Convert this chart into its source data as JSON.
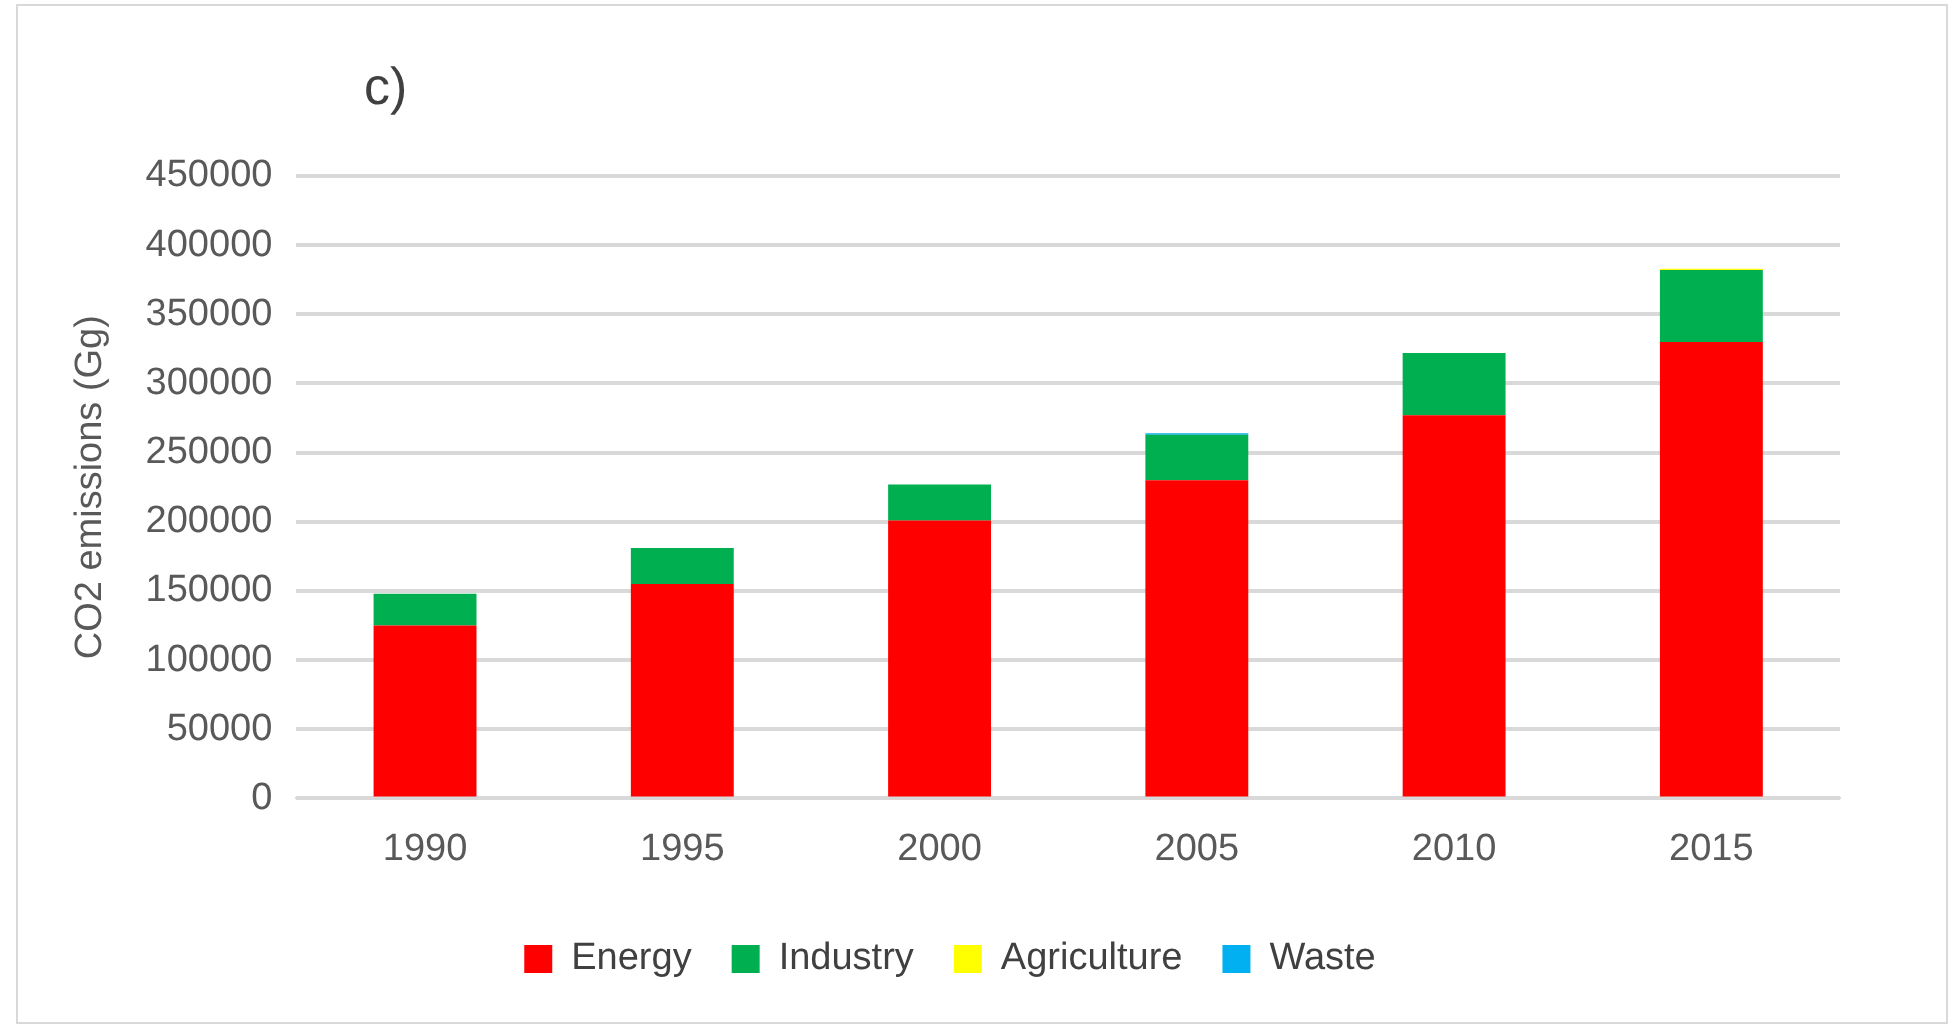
{
  "chart_data": {
    "type": "bar",
    "title": "c)",
    "ylabel": "CO2 emissions (Gg)",
    "categories": [
      "1990",
      "1995",
      "2000",
      "2005",
      "2010",
      "2015"
    ],
    "stacked": true,
    "series": [
      {
        "name": "Energy",
        "color": "#ff0000",
        "values": [
          125000,
          155000,
          201000,
          230000,
          277000,
          330000
        ]
      },
      {
        "name": "Industry",
        "color": "#00b050",
        "values": [
          23000,
          26000,
          26000,
          33000,
          45000,
          52000
        ]
      },
      {
        "name": "Agriculture",
        "color": "#ffff00",
        "values": [
          null,
          null,
          null,
          null,
          null,
          1000
        ]
      },
      {
        "name": "Waste",
        "color": "#00b0f0",
        "values": [
          null,
          null,
          null,
          1000,
          null,
          null
        ]
      }
    ],
    "ylim": [
      0,
      450000
    ],
    "yticks": [
      0,
      50000,
      100000,
      150000,
      200000,
      250000,
      300000,
      350000,
      400000,
      450000
    ],
    "grid": "y",
    "legend": "bottom"
  }
}
